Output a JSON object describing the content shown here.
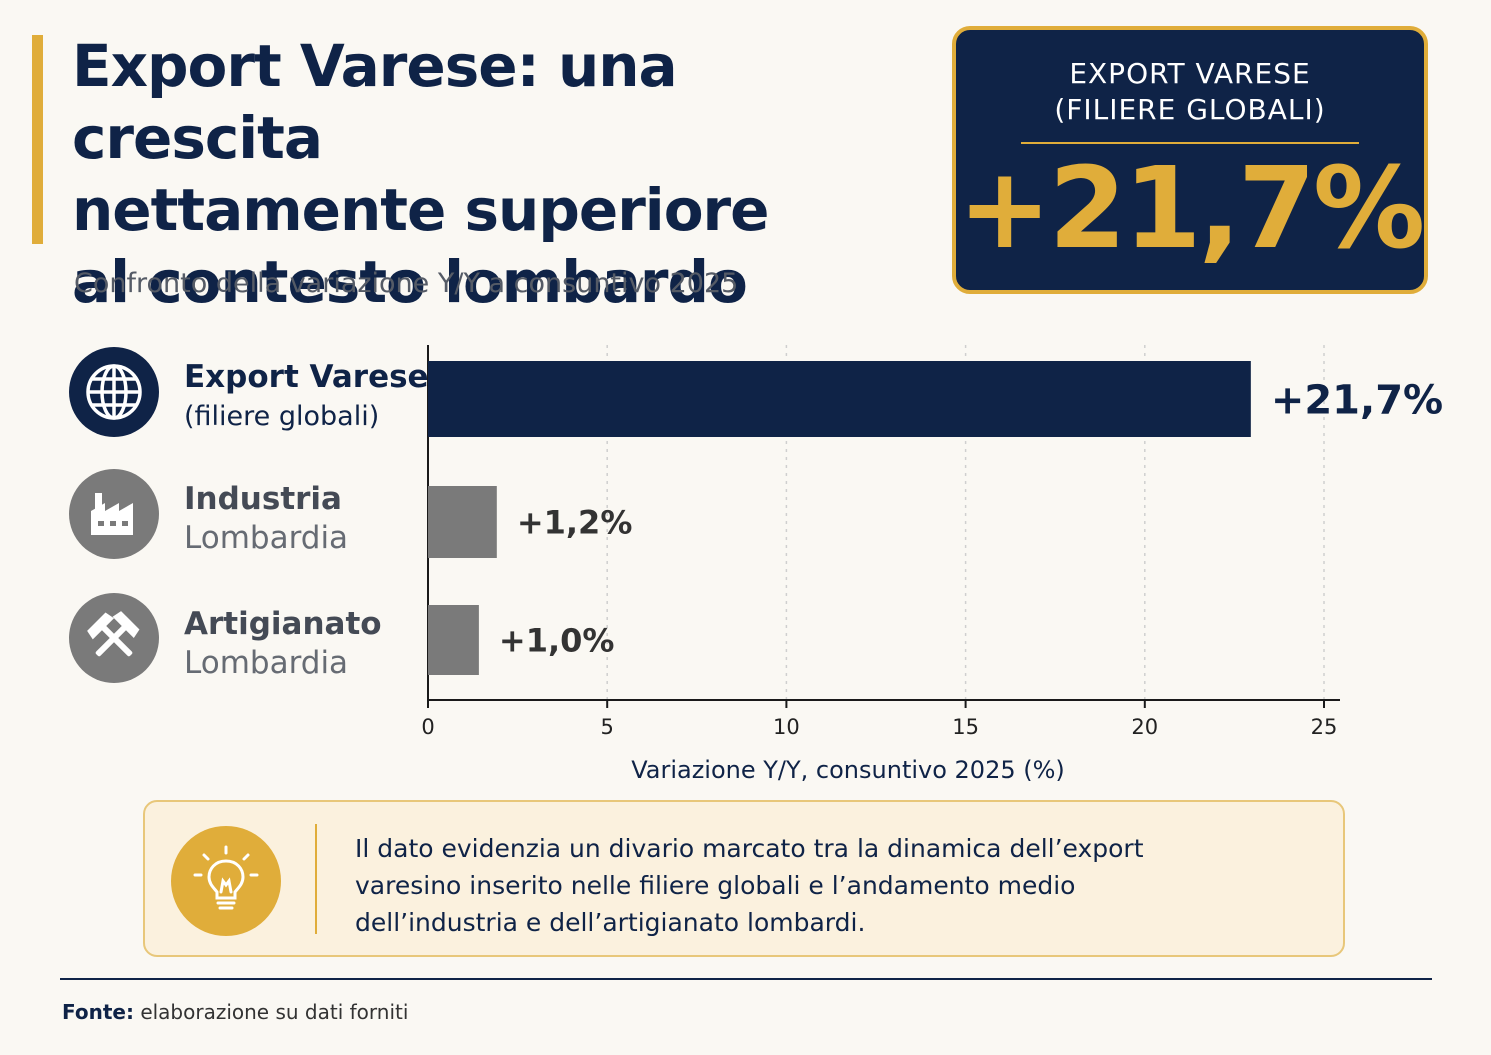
{
  "header": {
    "title_lines": [
      "Export Varese: una crescita",
      "nettamente superiore",
      "al contesto lombardo"
    ],
    "subtitle": "Confronto della variazione Y/Y a consuntivo 2025"
  },
  "kpi": {
    "label_lines": [
      "EXPORT VARESE",
      "(FILIERE GLOBALI)"
    ],
    "value": "+21,7%"
  },
  "categories": [
    {
      "line1": "Export Varese",
      "line2": "(filiere globali)",
      "icon": "globe-icon"
    },
    {
      "line1": "Industria",
      "line2": "Lombardia",
      "icon": "factory-icon"
    },
    {
      "line1": "Artigianato",
      "line2": "Lombardia",
      "icon": "hammers-icon"
    }
  ],
  "chart_data": {
    "type": "bar",
    "orientation": "horizontal",
    "categories": [
      "Export Varese (filiere globali)",
      "Industria Lombardia",
      "Artigianato Lombardia"
    ],
    "values": [
      21.7,
      1.2,
      1.0
    ],
    "data_labels": [
      "+21,7%",
      "+1,2%",
      "+1,0%"
    ],
    "colors": [
      "#0f2347",
      "#7a7a7a",
      "#7a7a7a"
    ],
    "xlabel": "Variazione Y/Y, consuntivo 2025 (%)",
    "xticks": [
      0,
      5,
      10,
      15,
      20,
      25
    ],
    "xlim": [
      0,
      25
    ],
    "grid": "vertical-dashed"
  },
  "callout": {
    "icon": "lightbulb-icon",
    "text_lines": [
      "Il dato evidenzia un divario marcato tra la dinamica dell’export",
      "varesino inserito nelle filiere globali e l’andamento medio",
      "dell’industria e dell’artigianato lombardi."
    ]
  },
  "footer": {
    "label": "Fonte:",
    "text": "elaborazione su dati forniti"
  },
  "colors": {
    "navy": "#0f2347",
    "gold": "#e0ad3a",
    "gray": "#7a7a7a",
    "background": "#faf8f3"
  }
}
